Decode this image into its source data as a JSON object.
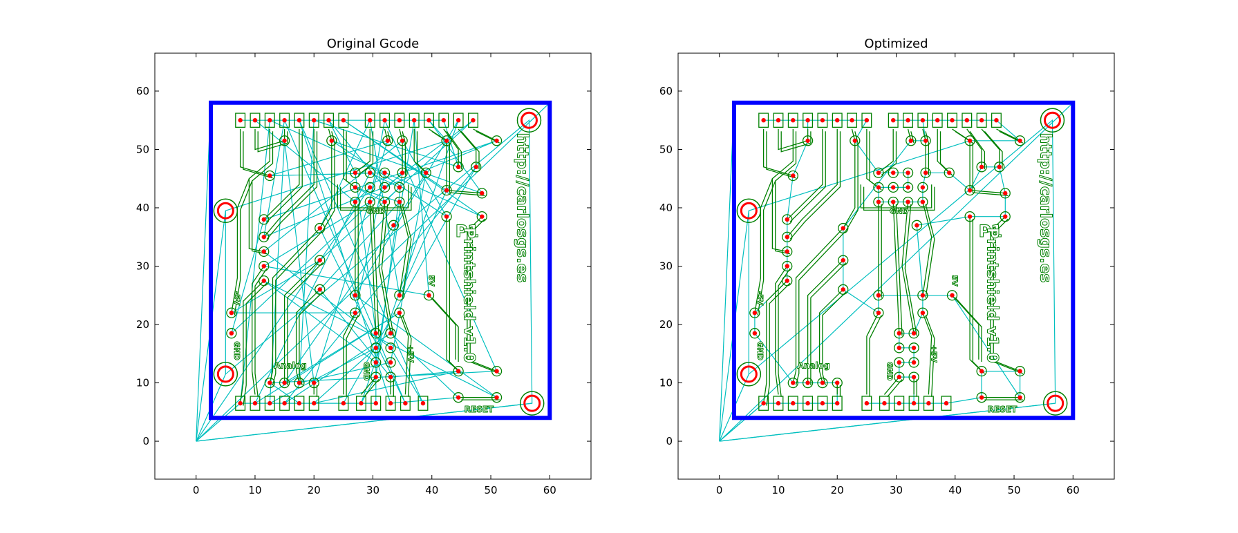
{
  "colors": {
    "background": "#ffffff",
    "axes_frame": "#000000",
    "board_outline": "#0000ff",
    "copper_traces": "#008000",
    "travel_moves": "#00bfbf",
    "drill_holes": "#ff0000"
  },
  "chart_data": [
    {
      "type": "line",
      "title": "Original Gcode",
      "xlabel": "",
      "ylabel": "",
      "xlim": [
        -7,
        67
      ],
      "ylim": [
        -6.5,
        66.5
      ],
      "xticks": [
        0,
        10,
        20,
        30,
        40,
        50,
        60
      ],
      "yticks": [
        0,
        10,
        20,
        30,
        40,
        50,
        60
      ],
      "grid": false,
      "series": [
        {
          "role": "board_outline",
          "values": [
            [
              2.5,
              4
            ],
            [
              60,
              4
            ],
            [
              60,
              58
            ],
            [
              2.5,
              58
            ],
            [
              2.5,
              4
            ]
          ]
        },
        {
          "role": "mounting_holes",
          "values": [
            [
              5,
              39.5
            ],
            [
              5,
              11.5
            ],
            [
              56.5,
              55
            ],
            [
              57,
              6.5
            ]
          ]
        },
        {
          "role": "drill_holes",
          "values": [
            [
              7.5,
              55
            ],
            [
              10,
              55
            ],
            [
              12.5,
              55
            ],
            [
              15,
              55
            ],
            [
              17.5,
              55
            ],
            [
              20,
              55
            ],
            [
              22.5,
              55
            ],
            [
              25,
              55
            ],
            [
              29.5,
              55
            ],
            [
              32,
              55
            ],
            [
              34.5,
              55
            ],
            [
              37,
              55
            ],
            [
              39.5,
              55
            ],
            [
              42,
              55
            ],
            [
              44.5,
              55
            ],
            [
              47,
              55
            ],
            [
              15,
              51.5
            ],
            [
              23,
              51.5
            ],
            [
              32.5,
              51.5
            ],
            [
              35,
              51.5
            ],
            [
              42.5,
              51.5
            ],
            [
              51,
              51.5
            ],
            [
              12.5,
              45.5
            ],
            [
              27,
              46
            ],
            [
              29.5,
              46
            ],
            [
              32,
              46
            ],
            [
              35,
              46
            ],
            [
              39,
              46
            ],
            [
              44.5,
              47
            ],
            [
              47.5,
              47
            ],
            [
              27,
              43.5
            ],
            [
              29.5,
              43.5
            ],
            [
              32,
              43.5
            ],
            [
              34.5,
              43.5
            ],
            [
              42.5,
              43
            ],
            [
              48.5,
              42.5
            ],
            [
              27,
              41
            ],
            [
              29.5,
              41
            ],
            [
              32,
              41
            ],
            [
              34.5,
              41
            ],
            [
              42.5,
              38.5
            ],
            [
              48.5,
              38.5
            ],
            [
              11.5,
              38
            ],
            [
              11.5,
              35
            ],
            [
              21,
              36.5
            ],
            [
              33.5,
              37
            ],
            [
              11.5,
              32.5
            ],
            [
              11.5,
              30
            ],
            [
              21,
              31
            ],
            [
              11.5,
              27.5
            ],
            [
              21,
              26
            ],
            [
              27,
              25
            ],
            [
              34.5,
              25
            ],
            [
              39.5,
              25
            ],
            [
              27,
              22
            ],
            [
              34.5,
              22
            ],
            [
              6,
              22
            ],
            [
              6,
              18.5
            ],
            [
              30.5,
              18.5
            ],
            [
              33,
              18.5
            ],
            [
              30.5,
              16
            ],
            [
              33,
              16
            ],
            [
              30.5,
              13.5
            ],
            [
              33,
              13.5
            ],
            [
              30.5,
              11
            ],
            [
              33,
              11
            ],
            [
              44.5,
              12
            ],
            [
              51,
              12
            ],
            [
              12.5,
              10
            ],
            [
              15,
              10
            ],
            [
              17.5,
              10
            ],
            [
              20,
              10
            ],
            [
              44.5,
              7.5
            ],
            [
              51,
              7.5
            ],
            [
              7.5,
              6.5
            ],
            [
              10,
              6.5
            ],
            [
              12.5,
              6.5
            ],
            [
              15,
              6.5
            ],
            [
              17.5,
              6.5
            ],
            [
              20,
              6.5
            ],
            [
              25,
              6.5
            ],
            [
              28,
              6.5
            ],
            [
              30.5,
              6.5
            ],
            [
              33,
              6.5
            ],
            [
              35.5,
              6.5
            ],
            [
              38.5,
              6.5
            ]
          ]
        }
      ],
      "annotations": [
        "http://carlosgs.es",
        "P1",
        "Printshield v1.0",
        "GND",
        "+5V",
        "5V",
        "-5V",
        "GND",
        "Analog",
        "RESET"
      ]
    },
    {
      "type": "line",
      "title": "Optimized",
      "xlabel": "",
      "ylabel": "",
      "xlim": [
        -7,
        67
      ],
      "ylim": [
        -6.5,
        66.5
      ],
      "xticks": [
        0,
        10,
        20,
        30,
        40,
        50,
        60
      ],
      "yticks": [
        0,
        10,
        20,
        30,
        40,
        50,
        60
      ],
      "grid": false,
      "series": [
        {
          "role": "board_outline",
          "values": [
            [
              2.5,
              4
            ],
            [
              60,
              4
            ],
            [
              60,
              58
            ],
            [
              2.5,
              58
            ],
            [
              2.5,
              4
            ]
          ]
        },
        {
          "role": "mounting_holes",
          "values": [
            [
              5,
              39.5
            ],
            [
              5,
              11.5
            ],
            [
              56.5,
              55
            ],
            [
              57,
              6.5
            ]
          ]
        },
        {
          "role": "drill_holes",
          "values": [
            [
              7.5,
              55
            ],
            [
              10,
              55
            ],
            [
              12.5,
              55
            ],
            [
              15,
              55
            ],
            [
              17.5,
              55
            ],
            [
              20,
              55
            ],
            [
              22.5,
              55
            ],
            [
              25,
              55
            ],
            [
              29.5,
              55
            ],
            [
              32,
              55
            ],
            [
              34.5,
              55
            ],
            [
              37,
              55
            ],
            [
              39.5,
              55
            ],
            [
              42,
              55
            ],
            [
              44.5,
              55
            ],
            [
              47,
              55
            ],
            [
              15,
              51.5
            ],
            [
              23,
              51.5
            ],
            [
              32.5,
              51.5
            ],
            [
              35,
              51.5
            ],
            [
              42.5,
              51.5
            ],
            [
              51,
              51.5
            ],
            [
              12.5,
              45.5
            ],
            [
              27,
              46
            ],
            [
              29.5,
              46
            ],
            [
              32,
              46
            ],
            [
              35,
              46
            ],
            [
              39,
              46
            ],
            [
              44.5,
              47
            ],
            [
              47.5,
              47
            ],
            [
              27,
              43.5
            ],
            [
              29.5,
              43.5
            ],
            [
              32,
              43.5
            ],
            [
              34.5,
              43.5
            ],
            [
              42.5,
              43
            ],
            [
              48.5,
              42.5
            ],
            [
              27,
              41
            ],
            [
              29.5,
              41
            ],
            [
              32,
              41
            ],
            [
              34.5,
              41
            ],
            [
              42.5,
              38.5
            ],
            [
              48.5,
              38.5
            ],
            [
              11.5,
              38
            ],
            [
              11.5,
              35
            ],
            [
              21,
              36.5
            ],
            [
              33.5,
              37
            ],
            [
              11.5,
              32.5
            ],
            [
              11.5,
              30
            ],
            [
              21,
              31
            ],
            [
              11.5,
              27.5
            ],
            [
              21,
              26
            ],
            [
              27,
              25
            ],
            [
              34.5,
              25
            ],
            [
              39.5,
              25
            ],
            [
              27,
              22
            ],
            [
              34.5,
              22
            ],
            [
              6,
              22
            ],
            [
              6,
              18.5
            ],
            [
              30.5,
              18.5
            ],
            [
              33,
              18.5
            ],
            [
              30.5,
              16
            ],
            [
              33,
              16
            ],
            [
              30.5,
              13.5
            ],
            [
              33,
              13.5
            ],
            [
              30.5,
              11
            ],
            [
              33,
              11
            ],
            [
              44.5,
              12
            ],
            [
              51,
              12
            ],
            [
              12.5,
              10
            ],
            [
              15,
              10
            ],
            [
              17.5,
              10
            ],
            [
              20,
              10
            ],
            [
              44.5,
              7.5
            ],
            [
              51,
              7.5
            ],
            [
              7.5,
              6.5
            ],
            [
              10,
              6.5
            ],
            [
              12.5,
              6.5
            ],
            [
              15,
              6.5
            ],
            [
              17.5,
              6.5
            ],
            [
              20,
              6.5
            ],
            [
              25,
              6.5
            ],
            [
              28,
              6.5
            ],
            [
              30.5,
              6.5
            ],
            [
              33,
              6.5
            ],
            [
              35.5,
              6.5
            ],
            [
              38.5,
              6.5
            ]
          ]
        }
      ],
      "annotations": [
        "http://carlosgs.es",
        "P1",
        "Printshield v1.0",
        "GND",
        "+5V",
        "5V",
        "-5V",
        "GND",
        "Analog",
        "RESET"
      ]
    }
  ]
}
